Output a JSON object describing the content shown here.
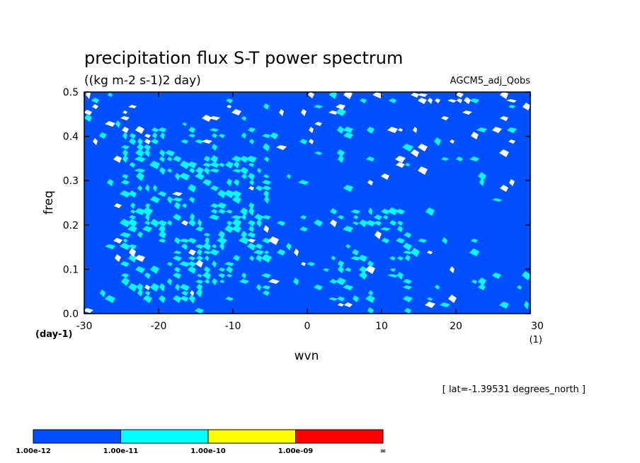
{
  "chart_data": {
    "type": "heatmap",
    "title": "precipitation flux S-T power spectrum",
    "subtitle": "((kg m-2 s-1)2 day)",
    "annotation_right": "AGCM5_adj_Qobs",
    "footnote": "[ lat=-1.39531 degrees_north ]",
    "xlabel": "wvn",
    "ylabel": "freq",
    "x_unit": "(1)",
    "y_unit": "(day-1)",
    "xlim": [
      -30,
      30
    ],
    "ylim": [
      0.0,
      0.5
    ],
    "x_ticks": [
      "-30",
      "-20",
      "-10",
      "0",
      "10",
      "20",
      "30"
    ],
    "y_ticks": [
      "0.0",
      "0.1",
      "0.2",
      "0.3",
      "0.4",
      "0.5"
    ],
    "x_tick_values": [
      -30,
      -20,
      -10,
      0,
      10,
      20,
      30
    ],
    "y_tick_values": [
      0.0,
      0.1,
      0.2,
      0.3,
      0.4,
      0.5
    ],
    "grid": false,
    "legend_placement": "bottom-left",
    "levels": [
      "1.00e-12",
      "1.00e-11",
      "1.00e-10",
      "1.00e-09",
      "∞"
    ],
    "level_colors": [
      "#0050ff",
      "#00ffff",
      "#ffff00",
      "#ff0000"
    ],
    "background_color": "#ffffff",
    "dominant_level": "1.00e-12 to 1.00e-11",
    "high_power_regions": [
      {
        "x_range": [
          -25,
          -5
        ],
        "y_range": [
          0.02,
          0.42
        ]
      },
      {
        "x_range": [
          3,
          14
        ],
        "y_range": [
          0.02,
          0.24
        ]
      }
    ]
  }
}
